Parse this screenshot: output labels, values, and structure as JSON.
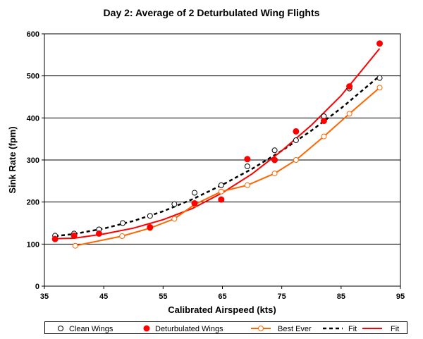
{
  "chart_data": {
    "type": "scatter",
    "title": "Day 2: Average of 2 Deturbulated Wing Flights",
    "xlabel": "Calibrated Airspeed (kts)",
    "ylabel": "Sink Rate (fpm)",
    "xlim": [
      35,
      95
    ],
    "ylim": [
      0,
      600
    ],
    "xticks": [
      "35",
      "45",
      "55",
      "65",
      "75",
      "85",
      "95"
    ],
    "yticks": [
      "0",
      "100",
      "200",
      "300",
      "400",
      "500",
      "600"
    ],
    "grid": "horizontal",
    "legend_position": "bottom",
    "series": [
      {
        "name": "Clean Wings",
        "style": "markers",
        "marker": "open-circle",
        "color": "#000000",
        "x": [
          36.8,
          40.0,
          44.2,
          48.2,
          52.8,
          56.9,
          60.3,
          64.8,
          69.2,
          73.8,
          77.4,
          82.1,
          86.4,
          91.5
        ],
        "y": [
          120,
          125,
          135,
          150,
          167,
          195,
          222,
          240,
          285,
          323,
          347,
          404,
          470,
          495
        ]
      },
      {
        "name": "Deturbulated Wings",
        "style": "markers",
        "marker": "filled-circle",
        "color": "#ff0000",
        "x": [
          36.8,
          40.0,
          44.2,
          52.8,
          60.3,
          64.8,
          69.2,
          73.8,
          77.4,
          82.1,
          86.4,
          91.5
        ],
        "y": [
          112,
          120,
          125,
          140,
          197,
          206,
          302,
          300,
          368,
          393,
          475,
          577
        ]
      },
      {
        "name": "Best Ever",
        "style": "line+markers",
        "marker": "open-circle",
        "color": "#ff6600",
        "x": [
          40.2,
          48.1,
          52.8,
          56.9,
          60.3,
          64.8,
          69.2,
          73.8,
          77.4,
          82.1,
          86.4,
          91.5
        ],
        "y": [
          96,
          119,
          138,
          160,
          194,
          225,
          240,
          268,
          300,
          356,
          410,
          472
        ]
      },
      {
        "name": "Fit",
        "style": "dashed-line",
        "color": "#000000",
        "x": [
          36.8,
          40,
          45,
          50,
          55,
          60,
          65,
          70,
          75,
          80,
          85,
          91.5
        ],
        "y": [
          119,
          124,
          137,
          155,
          178,
          207,
          241,
          279,
          322,
          370,
          423,
          500
        ]
      },
      {
        "name": "Fit",
        "style": "line",
        "color": "#ff0000",
        "x": [
          36.8,
          40,
          45,
          50,
          55,
          60,
          65,
          70,
          75,
          80,
          85,
          91.5
        ],
        "y": [
          113,
          114,
          124,
          138,
          158,
          185,
          222,
          267,
          322,
          383,
          453,
          565
        ]
      }
    ]
  }
}
